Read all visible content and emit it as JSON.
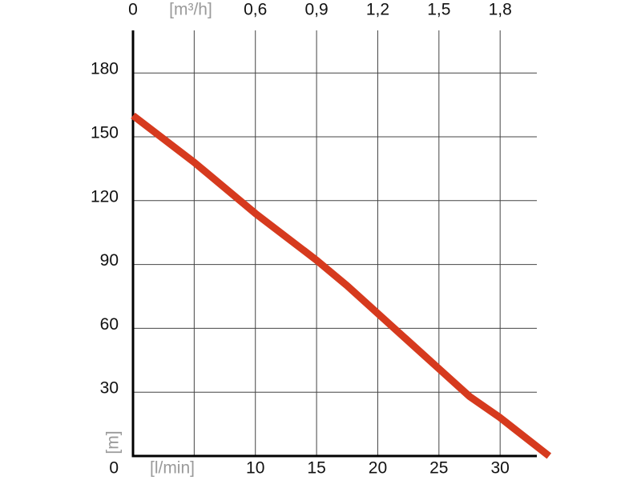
{
  "chart_data": {
    "type": "line",
    "x_label": "[l/min]",
    "y_label": "[m]",
    "x2_label": "[m³/h]",
    "x": [
      0,
      5,
      10,
      15,
      17.5,
      20,
      25,
      27.5,
      30,
      34
    ],
    "series": [
      {
        "color": "#d63a1e",
        "values": [
          160,
          138,
          114,
          92,
          80,
          67,
          41,
          28,
          18,
          0
        ]
      }
    ],
    "xlim": [
      0,
      33
    ],
    "ylim": [
      0,
      200
    ],
    "xticks": [
      10,
      15,
      20,
      25,
      30
    ],
    "xgrid": [
      5,
      10,
      15,
      20,
      25,
      30
    ],
    "yticks": [
      0,
      30,
      60,
      90,
      120,
      150,
      180
    ],
    "x2lim": [
      0,
      1.98
    ],
    "x2ticks": [
      0,
      {
        "value": 0.6,
        "label": "0,6"
      },
      {
        "value": 0.9,
        "label": "0,9"
      },
      {
        "value": 1.2,
        "label": "1,2"
      },
      {
        "value": 1.5,
        "label": "1,5"
      },
      {
        "value": 1.8,
        "label": "1,8"
      }
    ],
    "grid": true
  }
}
